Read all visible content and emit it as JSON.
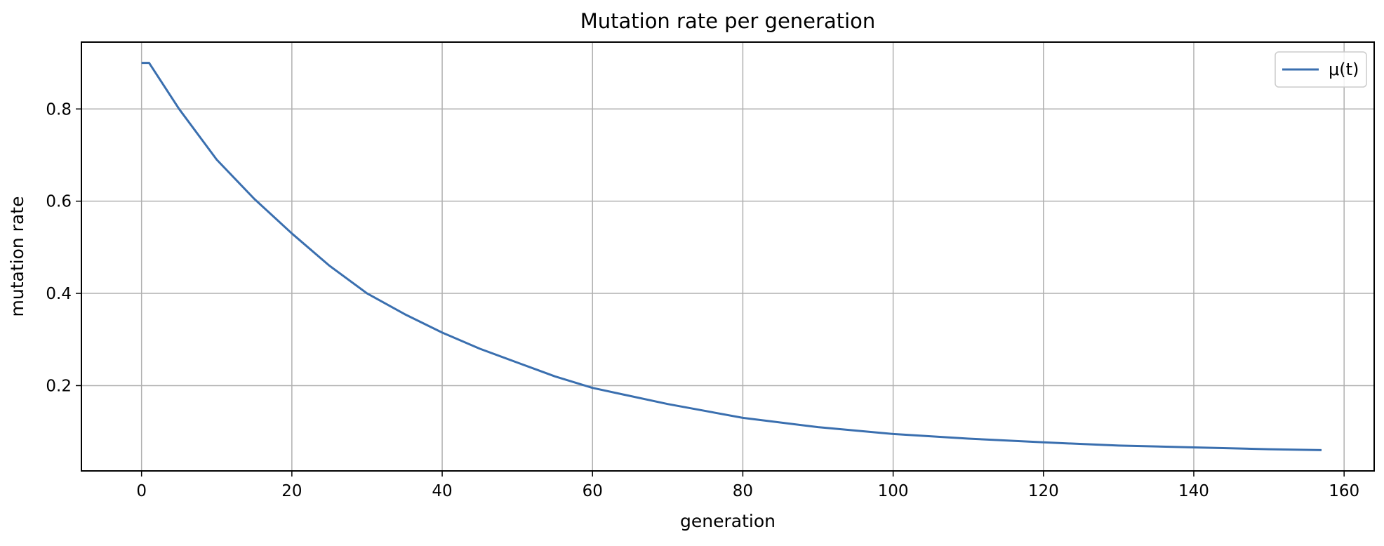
{
  "chart_data": {
    "type": "line",
    "title": "Mutation rate per generation",
    "xlabel": "generation",
    "ylabel": "mutation rate",
    "xlim": [
      -8,
      164
    ],
    "ylim": [
      0.015,
      0.945
    ],
    "xticks": [
      0,
      20,
      40,
      60,
      80,
      100,
      120,
      140,
      160
    ],
    "yticks": [
      0.2,
      0.4,
      0.6,
      0.8
    ],
    "grid": true,
    "legend": "top-right",
    "colors": {
      "series": "#3a6faf",
      "grid": "#b0b0b0",
      "frame": "#000000"
    },
    "series": [
      {
        "name": "μ(t)",
        "x": [
          0,
          1,
          5,
          10,
          15,
          20,
          25,
          30,
          35,
          40,
          45,
          50,
          55,
          60,
          70,
          80,
          90,
          100,
          110,
          120,
          130,
          140,
          150,
          157
        ],
        "y": [
          0.9,
          0.9,
          0.8,
          0.69,
          0.605,
          0.53,
          0.46,
          0.4,
          0.355,
          0.315,
          0.28,
          0.25,
          0.22,
          0.195,
          0.16,
          0.13,
          0.11,
          0.095,
          0.085,
          0.077,
          0.07,
          0.066,
          0.062,
          0.06
        ]
      }
    ]
  }
}
